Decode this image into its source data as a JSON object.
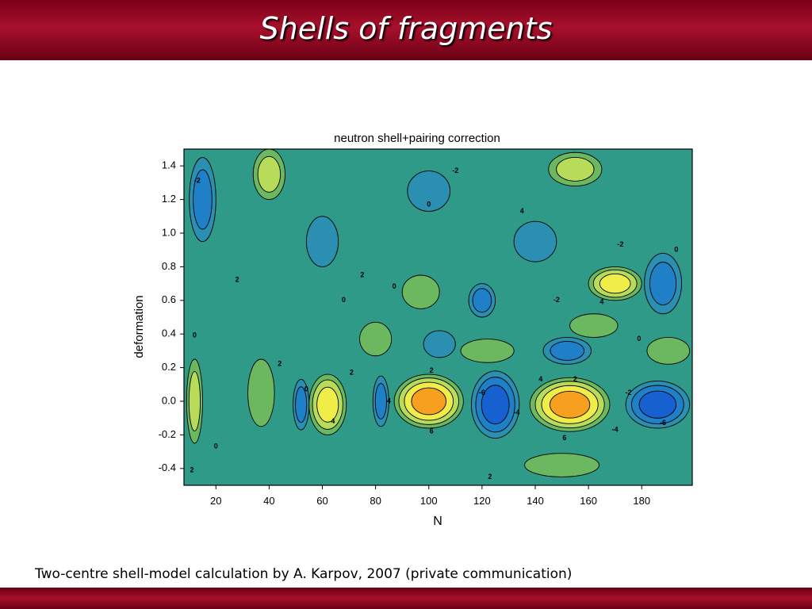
{
  "slide_title": "Shells of fragments",
  "caption": "Two-centre shell-model calculation by A. Karpov, 2007 (private communication)",
  "chart_data": {
    "type": "contour",
    "title": "neutron shell+pairing correction",
    "x_label": "N",
    "y_label": "deformation",
    "xlim": [
      8,
      199
    ],
    "ylim": [
      -0.5,
      1.5
    ],
    "xticks": [
      20,
      40,
      60,
      80,
      100,
      120,
      140,
      160,
      180
    ],
    "yticks": [
      {
        "value": -0.4,
        "label": "-0.4"
      },
      {
        "value": -0.2,
        "label": "-0.2"
      },
      {
        "value": 0,
        "label": "0.0"
      },
      0.2,
      0.4,
      0.6,
      0.8,
      {
        "value": 1,
        "label": "1.0"
      },
      1.2,
      1.4
    ],
    "colormap": [
      [
        -8,
        "#0a3cd8"
      ],
      [
        -6,
        "#1660d0"
      ],
      [
        -4,
        "#1f80c8"
      ],
      [
        -2,
        "#2a8fb0"
      ],
      [
        0,
        "#2f9a88"
      ],
      [
        2,
        "#6cb860"
      ],
      [
        4,
        "#b8dc5a"
      ],
      [
        6,
        "#f0ec48"
      ],
      [
        8,
        "#f7a020"
      ]
    ],
    "blobs": [
      {
        "x": 100,
        "y": 0.0,
        "dx": 13,
        "dy": 0.16,
        "value": 8
      },
      {
        "x": 153,
        "y": -0.02,
        "dx": 15,
        "dy": 0.16,
        "value": 8
      },
      {
        "x": 62,
        "y": -0.02,
        "dx": 7,
        "dy": 0.18,
        "value": 6
      },
      {
        "x": 125,
        "y": -0.02,
        "dx": 9,
        "dy": 0.2,
        "value": -6
      },
      {
        "x": 186,
        "y": -0.02,
        "dx": 12,
        "dy": 0.14,
        "value": -6
      },
      {
        "x": 15,
        "y": 1.2,
        "dx": 5,
        "dy": 0.25,
        "value": -4
      },
      {
        "x": 170,
        "y": 0.7,
        "dx": 10,
        "dy": 0.1,
        "value": 6
      },
      {
        "x": 104,
        "y": 0.34,
        "dx": 6,
        "dy": 0.08,
        "value": -2
      },
      {
        "x": 152,
        "y": 0.3,
        "dx": 9,
        "dy": 0.08,
        "value": -4
      },
      {
        "x": 40,
        "y": 1.35,
        "dx": 6,
        "dy": 0.15,
        "value": 4
      },
      {
        "x": 155,
        "y": 1.38,
        "dx": 10,
        "dy": 0.1,
        "value": 4
      },
      {
        "x": 80,
        "y": 0.37,
        "dx": 6,
        "dy": 0.1,
        "value": 2
      },
      {
        "x": 122,
        "y": 0.3,
        "dx": 10,
        "dy": 0.07,
        "value": 2
      },
      {
        "x": 97,
        "y": 0.65,
        "dx": 7,
        "dy": 0.1,
        "value": 2
      },
      {
        "x": 120,
        "y": 0.6,
        "dx": 5,
        "dy": 0.1,
        "value": -4
      },
      {
        "x": 162,
        "y": 0.45,
        "dx": 9,
        "dy": 0.07,
        "value": 2
      },
      {
        "x": 188,
        "y": 0.7,
        "dx": 7,
        "dy": 0.18,
        "value": -4
      },
      {
        "x": 100,
        "y": 1.25,
        "dx": 8,
        "dy": 0.12,
        "value": -2
      },
      {
        "x": 12,
        "y": 0.0,
        "dx": 3,
        "dy": 0.25,
        "value": 4
      },
      {
        "x": 37,
        "y": 0.05,
        "dx": 5,
        "dy": 0.2,
        "value": 2
      },
      {
        "x": 82,
        "y": 0.0,
        "dx": 3,
        "dy": 0.15,
        "value": -4
      },
      {
        "x": 52,
        "y": -0.02,
        "dx": 3,
        "dy": 0.15,
        "value": -4
      },
      {
        "x": 140,
        "y": 0.95,
        "dx": 8,
        "dy": 0.12,
        "value": -2
      },
      {
        "x": 60,
        "y": 0.95,
        "dx": 6,
        "dy": 0.15,
        "value": -2
      },
      {
        "x": 150,
        "y": -0.38,
        "dx": 14,
        "dy": 0.07,
        "value": 2
      },
      {
        "x": 190,
        "y": 0.3,
        "dx": 8,
        "dy": 0.08,
        "value": 2
      }
    ],
    "contour_labels": [
      {
        "x": 13,
        "y": 1.31,
        "value": -2
      },
      {
        "x": 100,
        "y": 1.17,
        "value": 0
      },
      {
        "x": 110,
        "y": 1.37,
        "value": -2
      },
      {
        "x": 135,
        "y": 1.13,
        "value": 4
      },
      {
        "x": 172,
        "y": 0.93,
        "value": -2
      },
      {
        "x": 193,
        "y": 0.9,
        "value": 0
      },
      {
        "x": 28,
        "y": 0.72,
        "value": 2
      },
      {
        "x": 75,
        "y": 0.75,
        "value": 2
      },
      {
        "x": 68,
        "y": 0.6,
        "value": 0
      },
      {
        "x": 87,
        "y": 0.68,
        "value": 0
      },
      {
        "x": 148,
        "y": 0.6,
        "value": -2
      },
      {
        "x": 165,
        "y": 0.59,
        "value": 4
      },
      {
        "x": 179,
        "y": 0.37,
        "value": 0
      },
      {
        "x": 12,
        "y": 0.39,
        "value": 0
      },
      {
        "x": 44,
        "y": 0.22,
        "value": 2
      },
      {
        "x": 71,
        "y": 0.17,
        "value": 2
      },
      {
        "x": 101,
        "y": 0.18,
        "value": 2
      },
      {
        "x": 54,
        "y": 0.07,
        "value": 0
      },
      {
        "x": 64,
        "y": -0.12,
        "value": 4
      },
      {
        "x": 85,
        "y": 0.0,
        "value": 4
      },
      {
        "x": 101,
        "y": -0.18,
        "value": 6
      },
      {
        "x": 120,
        "y": 0.05,
        "value": -6
      },
      {
        "x": 133,
        "y": -0.07,
        "value": -4
      },
      {
        "x": 142,
        "y": 0.13,
        "value": 4
      },
      {
        "x": 155,
        "y": 0.13,
        "value": 2
      },
      {
        "x": 151,
        "y": -0.22,
        "value": 6
      },
      {
        "x": 175,
        "y": 0.05,
        "value": -2
      },
      {
        "x": 170,
        "y": -0.17,
        "value": -4
      },
      {
        "x": 188,
        "y": -0.13,
        "value": -6
      },
      {
        "x": 20,
        "y": -0.27,
        "value": 0
      },
      {
        "x": 11,
        "y": -0.41,
        "value": 2
      },
      {
        "x": 123,
        "y": -0.45,
        "value": 2
      }
    ]
  }
}
